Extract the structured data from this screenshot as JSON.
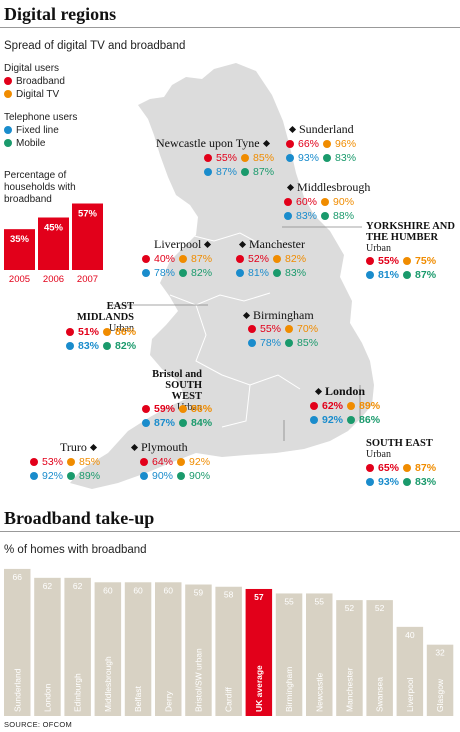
{
  "colors": {
    "broadband": "#e2001a",
    "digital_tv": "#f08c00",
    "fixed_line": "#1a8ccc",
    "mobile": "#1a9a6c",
    "map": "#dcdcdc",
    "bar_grey": "#d8d2c4",
    "bar_red": "#e2001a"
  },
  "digital_regions": {
    "title": "Digital regions",
    "subtitle": "Spread of digital TV and broadband",
    "legend": {
      "digital_heading": "Digital users",
      "broadband": "Broadband",
      "digital_tv": "Digital TV",
      "telephone_heading": "Telephone users",
      "fixed_line": "Fixed line",
      "mobile": "Mobile"
    },
    "mini_chart_label": "Percentage of households with broadband",
    "places": [
      {
        "name": "Sunderland",
        "sub": "",
        "broadband": "66%",
        "digital_tv": "96%",
        "fixed_line": "93%",
        "mobile": "83%",
        "bold": false
      },
      {
        "name": "Newcastle upon Tyne",
        "sub": "",
        "broadband": "55%",
        "digital_tv": "85%",
        "fixed_line": "87%",
        "mobile": "87%",
        "bold": false
      },
      {
        "name": "Middlesbrough",
        "sub": "",
        "broadband": "60%",
        "digital_tv": "90%",
        "fixed_line": "83%",
        "mobile": "88%",
        "bold": false
      },
      {
        "name": "YORKSHIRE AND THE HUMBER",
        "sub": "Urban",
        "broadband": "55%",
        "digital_tv": "75%",
        "fixed_line": "81%",
        "mobile": "87%",
        "bold": true
      },
      {
        "name": "Liverpool",
        "sub": "",
        "broadband": "40%",
        "digital_tv": "87%",
        "fixed_line": "78%",
        "mobile": "82%",
        "bold": false
      },
      {
        "name": "Manchester",
        "sub": "",
        "broadband": "52%",
        "digital_tv": "82%",
        "fixed_line": "81%",
        "mobile": "83%",
        "bold": false
      },
      {
        "name": "EAST MIDLANDS",
        "sub": "Urban",
        "broadband": "51%",
        "digital_tv": "86%",
        "fixed_line": "83%",
        "mobile": "82%",
        "bold": true
      },
      {
        "name": "Birmingham",
        "sub": "",
        "broadband": "55%",
        "digital_tv": "70%",
        "fixed_line": "78%",
        "mobile": "85%",
        "bold": false
      },
      {
        "name": "Bristol and SOUTH WEST",
        "sub": "Urban",
        "broadband": "59%",
        "digital_tv": "86%",
        "fixed_line": "87%",
        "mobile": "84%",
        "bold": true
      },
      {
        "name": "London",
        "sub": "",
        "broadband": "62%",
        "digital_tv": "89%",
        "fixed_line": "92%",
        "mobile": "86%",
        "bold": true
      },
      {
        "name": "Truro",
        "sub": "",
        "broadband": "53%",
        "digital_tv": "85%",
        "fixed_line": "92%",
        "mobile": "89%",
        "bold": false
      },
      {
        "name": "Plymouth",
        "sub": "",
        "broadband": "64%",
        "digital_tv": "92%",
        "fixed_line": "90%",
        "mobile": "90%",
        "bold": false
      },
      {
        "name": "SOUTH EAST",
        "sub": "Urban",
        "broadband": "65%",
        "digital_tv": "87%",
        "fixed_line": "93%",
        "mobile": "83%",
        "bold": true
      }
    ]
  },
  "broadband_takeup": {
    "title": "Broadband take-up",
    "subtitle": "% of homes with broadband",
    "source": "SOURCE: OFCOM"
  },
  "chart_data": [
    {
      "type": "bar",
      "title": "Percentage of households with broadband",
      "categories": [
        "2005",
        "2006",
        "2007"
      ],
      "values": [
        35,
        45,
        57
      ],
      "value_labels": [
        "35%",
        "45%",
        "57%"
      ],
      "ylim": [
        0,
        60
      ]
    },
    {
      "type": "bar",
      "title": "% of homes with broadband",
      "categories": [
        "Sunderland",
        "London",
        "Edinburgh",
        "Middlesbrough",
        "Belfast",
        "Derry",
        "Bristol/SW urban",
        "Cardiff",
        "UK average",
        "Birmingham",
        "Newcastle",
        "Manchester",
        "Swansea",
        "Liverpool",
        "Glasgow"
      ],
      "values": [
        66,
        62,
        62,
        60,
        60,
        60,
        59,
        58,
        57,
        55,
        55,
        52,
        52,
        40,
        32
      ],
      "highlight": "UK average",
      "ylim": [
        0,
        70
      ]
    }
  ]
}
